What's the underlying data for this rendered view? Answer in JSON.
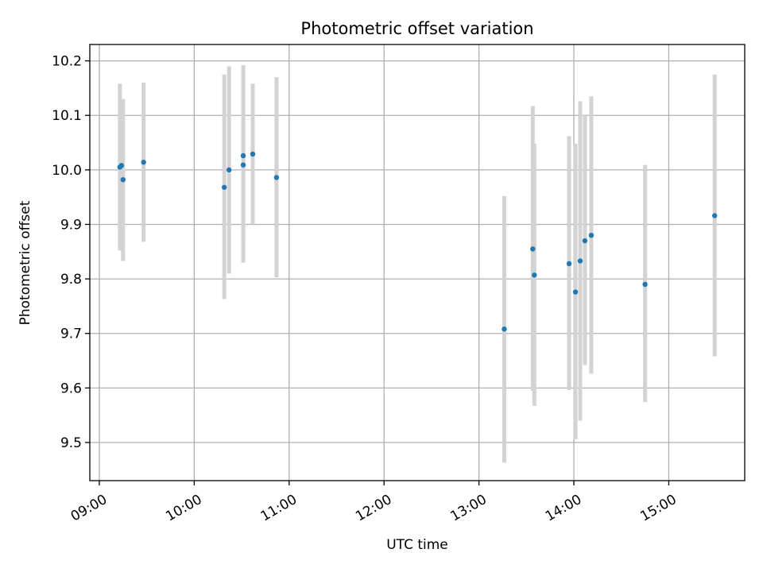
{
  "chart_data": {
    "type": "scatter",
    "title": "Photometric offset variation",
    "xlabel": "UTC time",
    "ylabel": "Photometric offset",
    "x_ticks": [
      "09:00",
      "10:00",
      "11:00",
      "12:00",
      "13:00",
      "14:00",
      "15:00"
    ],
    "y_ticks": [
      "9.5",
      "9.6",
      "9.7",
      "9.8",
      "9.9",
      "10.0",
      "10.1",
      "10.2"
    ],
    "xlim": [
      "08:54",
      "15:48"
    ],
    "ylim": [
      9.43,
      10.23
    ],
    "grid": true,
    "marker_color": "#1f77b4",
    "errorbar_color": "#d3d3d3",
    "series": [
      {
        "points": [
          {
            "x": "09:13",
            "y": 10.005,
            "low": 9.852,
            "high": 10.158
          },
          {
            "x": "09:14",
            "y": 10.008,
            "low": 9.86,
            "high": 10.05
          },
          {
            "x": "09:15",
            "y": 9.982,
            "low": 9.833,
            "high": 10.13
          },
          {
            "x": "09:28",
            "y": 10.014,
            "low": 9.868,
            "high": 10.16
          },
          {
            "x": "10:19",
            "y": 9.968,
            "low": 9.763,
            "high": 10.175
          },
          {
            "x": "10:22",
            "y": 10.0,
            "low": 9.81,
            "high": 10.19
          },
          {
            "x": "10:31",
            "y": 10.026,
            "low": 9.86,
            "high": 10.192
          },
          {
            "x": "10:31",
            "y": 10.009,
            "low": 9.83,
            "high": 10.1
          },
          {
            "x": "10:37",
            "y": 10.029,
            "low": 9.9,
            "high": 10.158
          },
          {
            "x": "10:52",
            "y": 9.986,
            "low": 9.803,
            "high": 10.17
          },
          {
            "x": "13:16",
            "y": 9.708,
            "low": 9.463,
            "high": 9.952
          },
          {
            "x": "13:34",
            "y": 9.855,
            "low": 9.595,
            "high": 10.117
          },
          {
            "x": "13:35",
            "y": 9.807,
            "low": 9.567,
            "high": 10.048
          },
          {
            "x": "13:57",
            "y": 9.828,
            "low": 9.596,
            "high": 10.062
          },
          {
            "x": "14:01",
            "y": 9.776,
            "low": 9.506,
            "high": 10.048
          },
          {
            "x": "14:04",
            "y": 9.833,
            "low": 9.54,
            "high": 10.126
          },
          {
            "x": "14:07",
            "y": 9.87,
            "low": 9.642,
            "high": 10.1
          },
          {
            "x": "14:11",
            "y": 9.88,
            "low": 9.626,
            "high": 10.135
          },
          {
            "x": "14:45",
            "y": 9.79,
            "low": 9.574,
            "high": 10.009
          },
          {
            "x": "15:29",
            "y": 9.916,
            "low": 9.658,
            "high": 10.175
          }
        ]
      }
    ]
  }
}
